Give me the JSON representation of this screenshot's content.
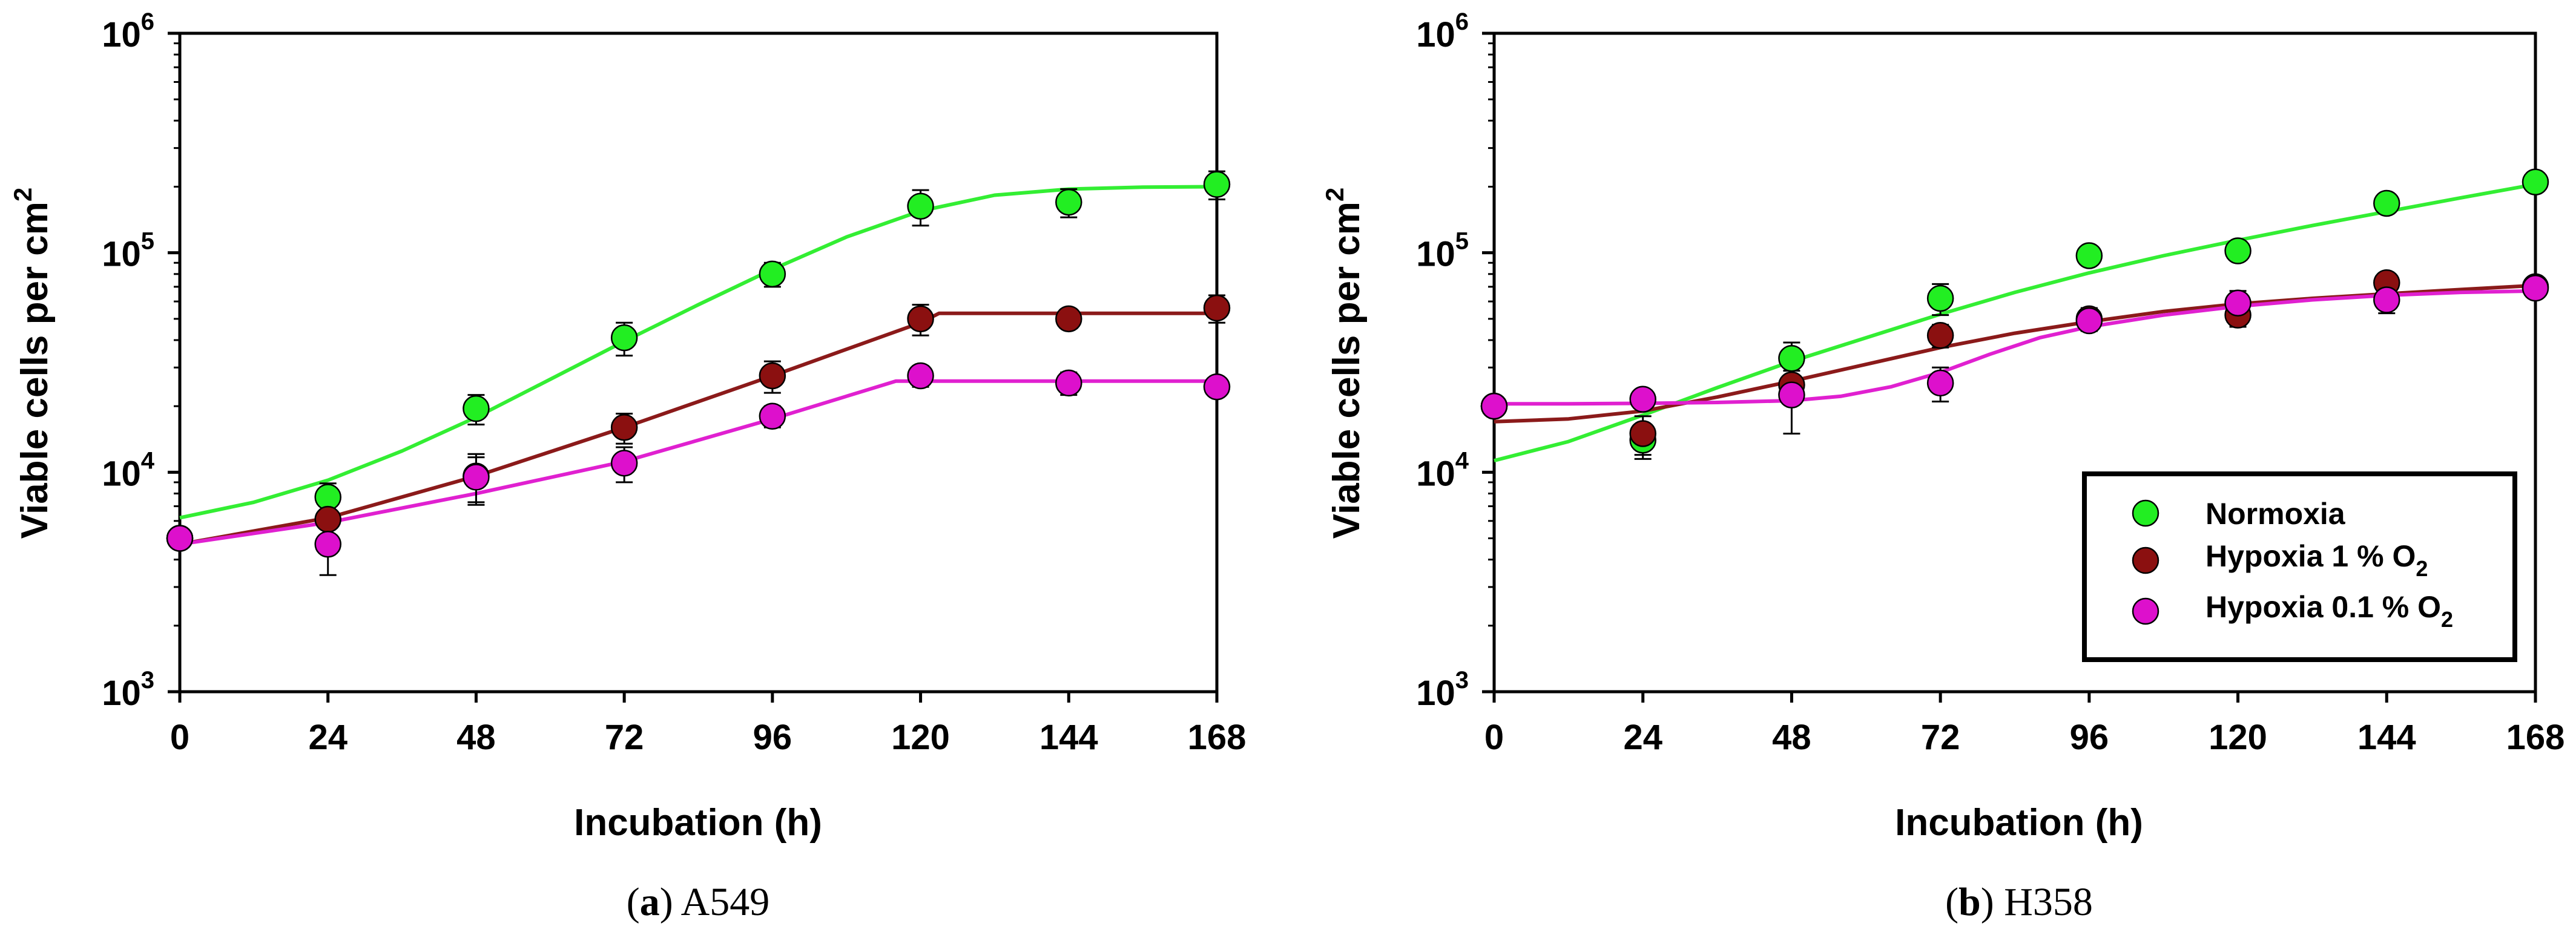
{
  "chart_data": [
    {
      "type": "scatter",
      "caption_letter": "a",
      "caption_text": "A549",
      "xlabel": "Incubation (h)",
      "ylabel": "Viable cells per cm",
      "ylabel_sup": "2",
      "yscale": "log",
      "ylim": [
        1000,
        1000000
      ],
      "xlim": [
        0,
        168
      ],
      "x_ticks": [
        0,
        24,
        48,
        72,
        96,
        120,
        144,
        168
      ],
      "y_ticks": [
        {
          "base": "10",
          "exp": "3",
          "value": 1000
        },
        {
          "base": "10",
          "exp": "4",
          "value": 10000
        },
        {
          "base": "10",
          "exp": "5",
          "value": 100000
        },
        {
          "base": "10",
          "exp": "6",
          "value": 1000000
        }
      ],
      "grid": false,
      "series": [
        {
          "name": "Normoxia",
          "color": "#22ee22",
          "line_color": "#33ee33",
          "x": [
            0,
            24,
            48,
            72,
            96,
            120,
            144,
            168
          ],
          "y": [
            5000,
            7700,
            19500,
            41000,
            80000,
            163000,
            170000,
            205000
          ],
          "err": [
            null,
            1200,
            3000,
            7000,
            10000,
            30000,
            25000,
            30000
          ],
          "fit_x": [
            0,
            12,
            24,
            36,
            48,
            60,
            72,
            84,
            96,
            108,
            120,
            132,
            144,
            156,
            168
          ],
          "fit_y": [
            6200,
            7300,
            9200,
            12500,
            17800,
            26500,
            39500,
            58000,
            84000,
            118000,
            155000,
            183000,
            195000,
            199000,
            200000
          ]
        },
        {
          "name": "Hypoxia 1 % O2",
          "color": "#8b1010",
          "line_color": "#8b1a1a",
          "x": [
            0,
            24,
            48,
            72,
            96,
            120,
            144,
            168
          ],
          "y": [
            5000,
            6100,
            9600,
            16000,
            27500,
            50000,
            50000,
            56000
          ],
          "err": [
            null,
            500,
            2500,
            2500,
            4500,
            8000,
            3000,
            8000
          ],
          "fit_x": [
            0,
            24,
            48,
            72,
            96,
            120,
            123,
            168
          ],
          "fit_y": [
            4700,
            6200,
            9600,
            16000,
            27500,
            48000,
            53000,
            53000
          ]
        },
        {
          "name": "Hypoxia 0.1 % O2",
          "color": "#dd10cc",
          "line_color": "#e020d0",
          "x": [
            0,
            24,
            48,
            72,
            96,
            120,
            144,
            168
          ],
          "y": [
            5000,
            4700,
            9500,
            11000,
            18000,
            27500,
            25500,
            24500
          ],
          "err": [
            null,
            1300,
            2200,
            2000,
            2000,
            3000,
            3000,
            2000
          ],
          "fit_x": [
            0,
            24,
            48,
            72,
            96,
            116,
            168
          ],
          "fit_y": [
            4700,
            5900,
            8000,
            11200,
            17500,
            26000,
            26000
          ]
        }
      ]
    },
    {
      "type": "scatter",
      "caption_letter": "b",
      "caption_text": "H358",
      "xlabel": "Incubation (h)",
      "ylabel": "Viable cells per cm",
      "ylabel_sup": "2",
      "yscale": "log",
      "ylim": [
        1000,
        1000000
      ],
      "xlim": [
        0,
        168
      ],
      "x_ticks": [
        0,
        24,
        48,
        72,
        96,
        120,
        144,
        168
      ],
      "y_ticks": [
        {
          "base": "10",
          "exp": "3",
          "value": 1000
        },
        {
          "base": "10",
          "exp": "4",
          "value": 10000
        },
        {
          "base": "10",
          "exp": "5",
          "value": 100000
        },
        {
          "base": "10",
          "exp": "6",
          "value": 1000000
        }
      ],
      "grid": false,
      "legend_position": "lower-right",
      "legend": [
        {
          "label": "Normoxia",
          "sub": "",
          "color": "#22ee22"
        },
        {
          "label": "Hypoxia 1 % O",
          "sub": "2",
          "color": "#8b1010"
        },
        {
          "label": "Hypoxia 0.1 % O",
          "sub": "2",
          "color": "#dd10cc"
        }
      ],
      "series": [
        {
          "name": "Normoxia",
          "color": "#22ee22",
          "line_color": "#33ee33",
          "x": [
            0,
            24,
            48,
            72,
            96,
            120,
            144,
            168
          ],
          "y": [
            20000,
            14000,
            33000,
            62000,
            97000,
            102000,
            168000,
            210000
          ],
          "err": [
            null,
            2500,
            6000,
            10000,
            5000,
            5000,
            10000,
            10000
          ],
          "fit_x": [
            0,
            12,
            24,
            36,
            48,
            60,
            72,
            84,
            96,
            108,
            120,
            132,
            144,
            156,
            168
          ],
          "fit_y": [
            11300,
            13800,
            18200,
            24300,
            32000,
            41000,
            52500,
            66000,
            81000,
            97000,
            114000,
            133000,
            154000,
            178000,
            205000
          ]
        },
        {
          "name": "Hypoxia 1 % O2",
          "color": "#8b1010",
          "line_color": "#8b1a1a",
          "x": [
            0,
            24,
            48,
            72,
            96,
            120,
            144,
            168
          ],
          "y": [
            20000,
            15000,
            25000,
            42000,
            50000,
            52000,
            73000,
            70000
          ],
          "err": [
            null,
            3000,
            4000,
            5000,
            6000,
            6000,
            4000,
            5000
          ],
          "fit_x": [
            0,
            12,
            24,
            36,
            48,
            60,
            72,
            84,
            96,
            108,
            120,
            132,
            144,
            156,
            168
          ],
          "fit_y": [
            17000,
            17500,
            19000,
            22000,
            26000,
            31000,
            37000,
            43000,
            48500,
            54000,
            58500,
            62000,
            65000,
            68000,
            71000
          ]
        },
        {
          "name": "Hypoxia 0.1 % O2",
          "color": "#dd10cc",
          "line_color": "#e020d0",
          "x": [
            0,
            24,
            48,
            72,
            96,
            120,
            144,
            168
          ],
          "y": [
            20000,
            21500,
            22500,
            25500,
            49000,
            59000,
            61000,
            69000
          ],
          "err": [
            null,
            1500,
            7500,
            4500,
            5000,
            8000,
            8000,
            6000
          ],
          "fit_x": [
            0,
            12,
            24,
            36,
            48,
            56,
            64,
            72,
            80,
            88,
            96,
            108,
            120,
            132,
            144,
            156,
            168
          ],
          "fit_y": [
            20500,
            20500,
            20600,
            20800,
            21200,
            22200,
            24500,
            28500,
            34500,
            41000,
            46000,
            52000,
            57000,
            61000,
            64000,
            66000,
            67000
          ]
        }
      ]
    }
  ]
}
